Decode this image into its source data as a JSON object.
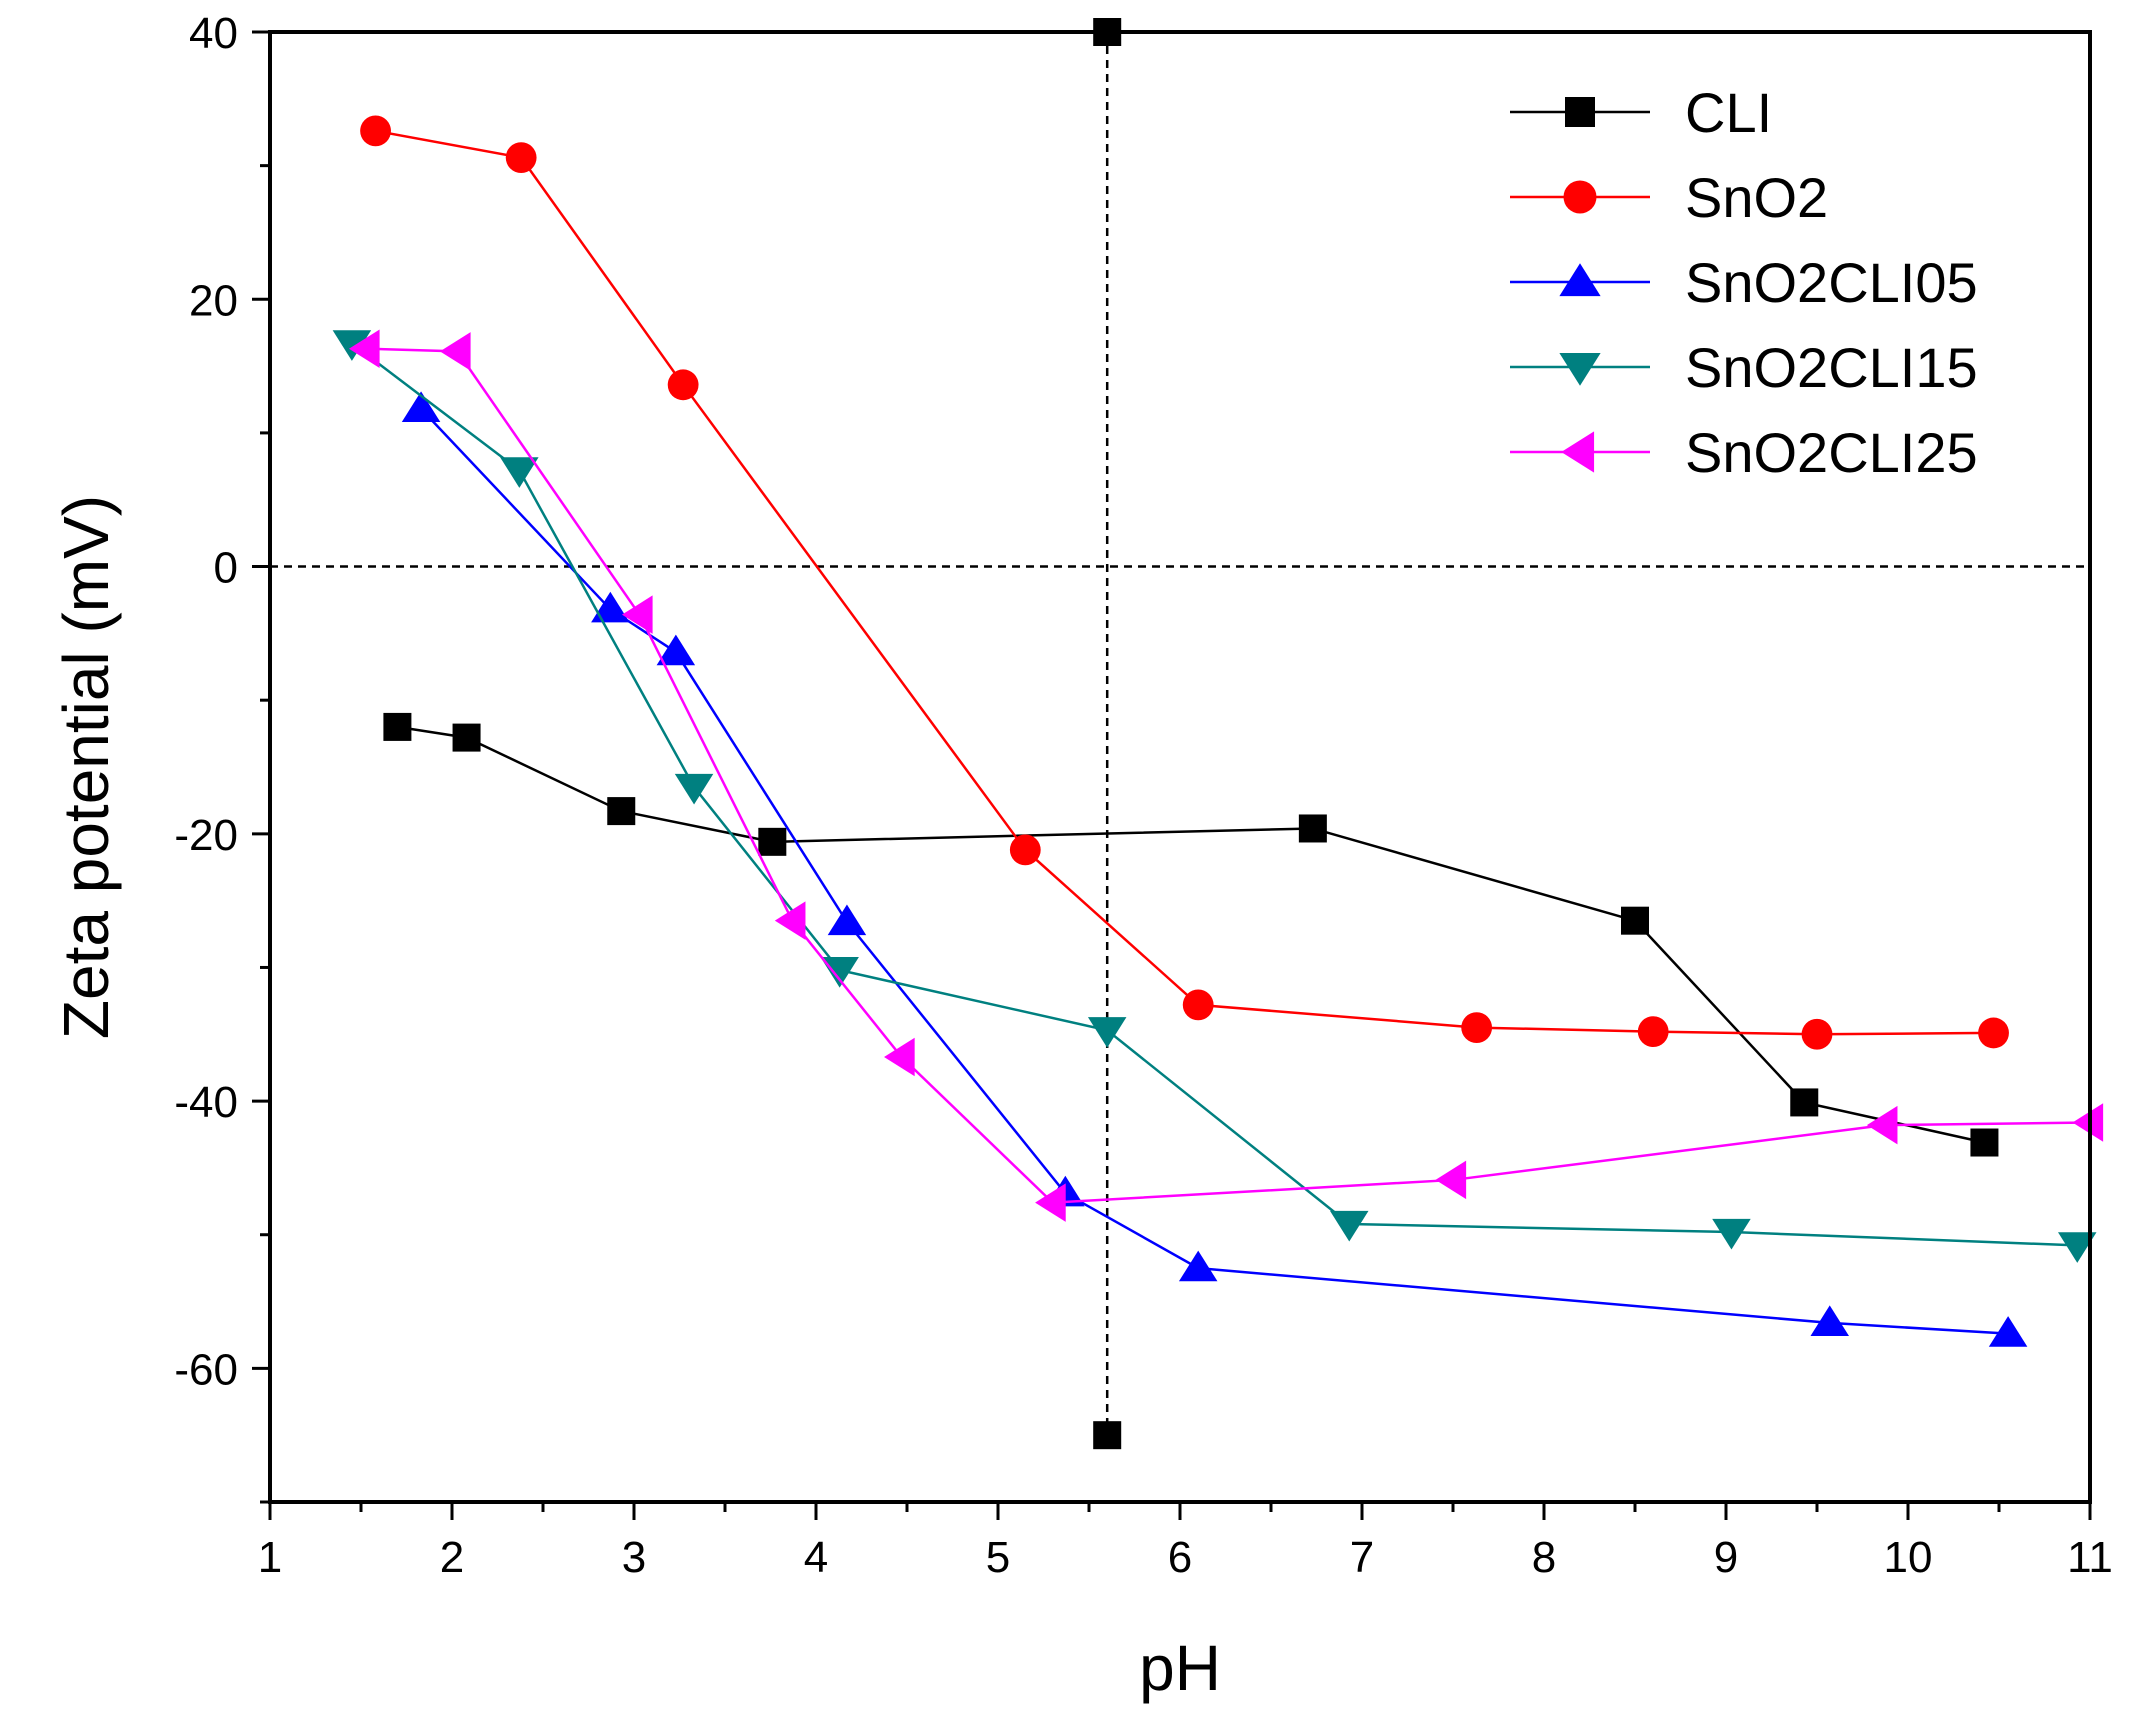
{
  "chart_data": {
    "type": "line",
    "title": "",
    "xlabel": "pH",
    "ylabel": "Zeta potential (mV)",
    "xlim": [
      1,
      11
    ],
    "ylim": [
      -70,
      40
    ],
    "xticks": [
      1,
      2,
      3,
      4,
      5,
      6,
      7,
      8,
      9,
      10,
      11
    ],
    "yticks": [
      -60,
      -40,
      -20,
      0,
      20,
      40
    ],
    "grid": false,
    "legend_position": "top-right",
    "reference_lines": {
      "horizontal_y": 0,
      "vertical_x": 5.6
    },
    "series": [
      {
        "name": "CLI",
        "color": "#000000",
        "marker": "square",
        "points": [
          [
            1.7,
            -12.0
          ],
          [
            2.08,
            -12.8
          ],
          [
            2.93,
            -18.3
          ],
          [
            3.76,
            -20.6
          ],
          [
            6.73,
            -19.6
          ],
          [
            8.5,
            -26.5
          ],
          [
            9.43,
            -40.1
          ],
          [
            10.42,
            -43.1
          ]
        ],
        "extra_points": [
          [
            5.6,
            40.0
          ],
          [
            5.6,
            -65.0
          ]
        ]
      },
      {
        "name": "SnO2",
        "color": "#ff0000",
        "marker": "circle",
        "points": [
          [
            1.58,
            32.6
          ],
          [
            2.38,
            30.6
          ],
          [
            3.27,
            13.6
          ],
          [
            5.15,
            -21.2
          ],
          [
            6.1,
            -32.8
          ],
          [
            7.63,
            -34.5
          ],
          [
            8.6,
            -34.8
          ],
          [
            9.5,
            -35.0
          ],
          [
            10.47,
            -34.9
          ]
        ]
      },
      {
        "name": "SnO2CLI05",
        "color": "#0000ff",
        "marker": "triangle-up",
        "points": [
          [
            1.83,
            11.8
          ],
          [
            2.87,
            -3.2
          ],
          [
            3.23,
            -6.4
          ],
          [
            4.17,
            -26.6
          ],
          [
            5.37,
            -46.9
          ],
          [
            6.1,
            -52.5
          ],
          [
            9.57,
            -56.6
          ],
          [
            10.55,
            -57.4
          ]
        ]
      },
      {
        "name": "SnO2CLI15",
        "color": "#008080",
        "marker": "triangle-down",
        "points": [
          [
            1.45,
            16.7
          ],
          [
            2.37,
            7.2
          ],
          [
            3.33,
            -16.5
          ],
          [
            4.13,
            -30.2
          ],
          [
            5.6,
            -34.7
          ],
          [
            6.93,
            -49.2
          ],
          [
            9.03,
            -49.8
          ],
          [
            10.93,
            -50.8
          ]
        ]
      },
      {
        "name": "SnO2CLI25",
        "color": "#ff00ff",
        "marker": "triangle-left",
        "points": [
          [
            1.53,
            16.3
          ],
          [
            2.03,
            16.1
          ],
          [
            3.03,
            -3.6
          ],
          [
            3.87,
            -26.5
          ],
          [
            4.47,
            -36.7
          ],
          [
            5.3,
            -47.6
          ],
          [
            7.5,
            -45.9
          ],
          [
            9.87,
            -41.8
          ],
          [
            11.0,
            -41.6
          ]
        ]
      }
    ]
  }
}
